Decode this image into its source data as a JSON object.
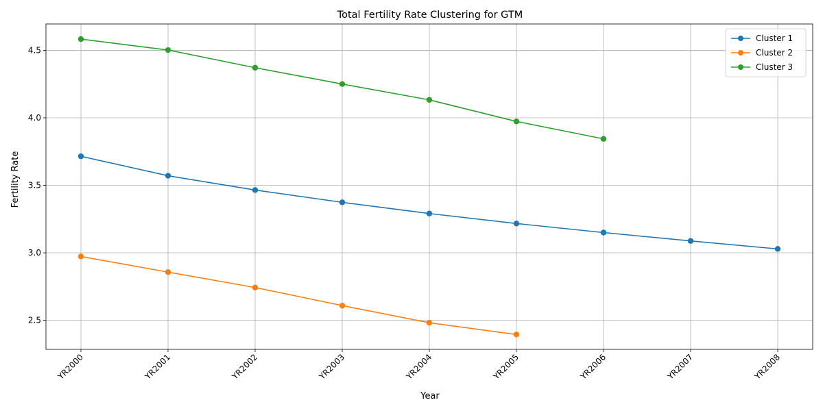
{
  "chart_data": {
    "type": "line",
    "title": "Total Fertility Rate Clustering for GTM",
    "xlabel": "Year",
    "ylabel": "Fertility Rate",
    "categories": [
      "YR2000",
      "YR2001",
      "YR2002",
      "YR2003",
      "YR2004",
      "YR2005",
      "YR2006",
      "YR2007",
      "YR2008"
    ],
    "y_ticks": [
      2.5,
      3.0,
      3.5,
      4.0,
      4.5
    ],
    "y_tick_labels": [
      "2.5",
      "3.0",
      "3.5",
      "4.0",
      "4.5"
    ],
    "ylim": [
      2.285,
      4.695
    ],
    "grid": true,
    "legend_position": "top-right",
    "series": [
      {
        "name": "Cluster 1",
        "color": "#1f77b4",
        "values": [
          3.715,
          3.571,
          3.465,
          3.374,
          3.291,
          3.217,
          3.15,
          3.088,
          3.029
        ]
      },
      {
        "name": "Cluster 2",
        "color": "#ff7f0e",
        "values": [
          2.973,
          2.857,
          2.743,
          2.609,
          2.482,
          2.395,
          null,
          null,
          null
        ]
      },
      {
        "name": "Cluster 3",
        "color": "#2ca02c",
        "values": [
          4.583,
          4.502,
          4.371,
          4.25,
          4.133,
          3.973,
          3.844,
          null,
          null
        ]
      }
    ]
  }
}
